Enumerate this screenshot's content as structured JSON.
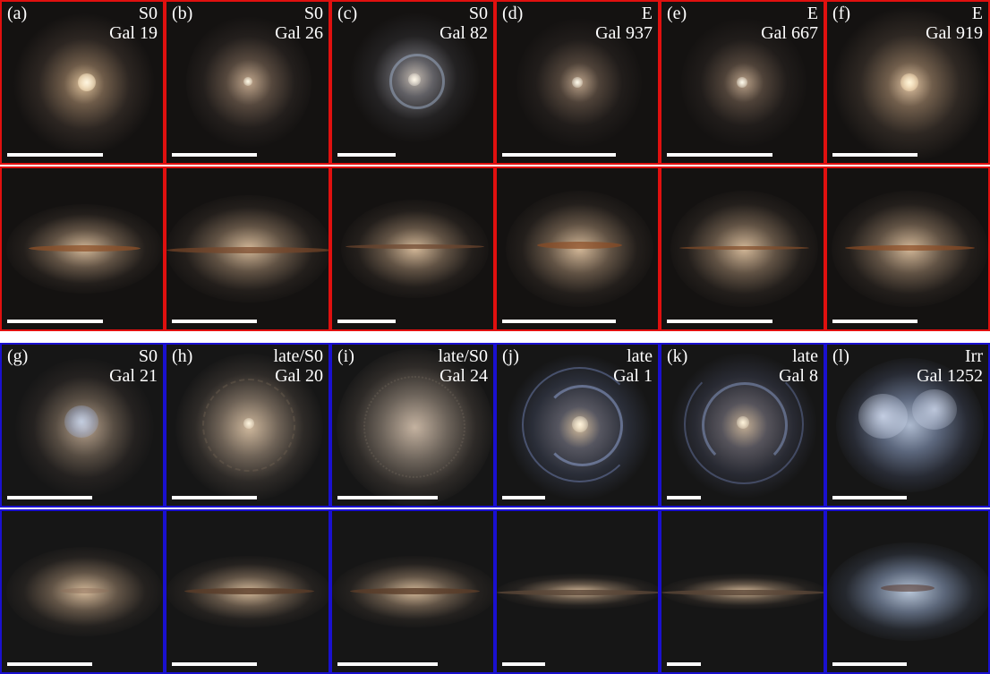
{
  "colors": {
    "top_border": "#e0100f",
    "bottom_border": "#1a10d0",
    "scalebar": "#ffffff"
  },
  "top_group": [
    {
      "panel": "(a)",
      "type": "S0",
      "name": "Gal 19",
      "face": "s0big",
      "edge": "edgeS0a",
      "bar": 0.62
    },
    {
      "panel": "(b)",
      "type": "S0",
      "name": "Gal 26",
      "face": "s0",
      "edge": "edgeS0b",
      "bar": 0.55
    },
    {
      "panel": "(c)",
      "type": "S0",
      "name": "Gal 82",
      "face": "s0ring",
      "edge": "edgeS0c",
      "bar": 0.38
    },
    {
      "panel": "(d)",
      "type": "E",
      "name": "Gal 937",
      "face": "ell",
      "edge": "edgeE1",
      "bar": 0.74
    },
    {
      "panel": "(e)",
      "type": "E",
      "name": "Gal 667",
      "face": "ell",
      "edge": "edgeE2",
      "bar": 0.68
    },
    {
      "panel": "(f)",
      "type": "E",
      "name": "Gal 919",
      "face": "ellbig",
      "edge": "edgeE3",
      "bar": 0.55
    }
  ],
  "bottom_group": [
    {
      "panel": "(g)",
      "type": "S0",
      "name": "Gal 21",
      "face": "s0blue",
      "edge": "edgeG",
      "bar": 0.55
    },
    {
      "panel": "(h)",
      "type": "late/S0",
      "name": "Gal 20",
      "face": "lateS0",
      "edge": "edgeH",
      "bar": 0.55
    },
    {
      "panel": "(i)",
      "type": "late/S0",
      "name": "Gal 24",
      "face": "lateS0b",
      "edge": "edgeI",
      "bar": 0.65
    },
    {
      "panel": "(j)",
      "type": "late",
      "name": "Gal 1",
      "face": "spiral",
      "edge": "edgeJ",
      "bar": 0.28
    },
    {
      "panel": "(k)",
      "type": "late",
      "name": "Gal 8",
      "face": "spiral2",
      "edge": "edgeK",
      "bar": 0.22
    },
    {
      "panel": "(l)",
      "type": "Irr",
      "name": "Gal 1252",
      "face": "irr",
      "edge": "edgeL",
      "bar": 0.48
    }
  ]
}
